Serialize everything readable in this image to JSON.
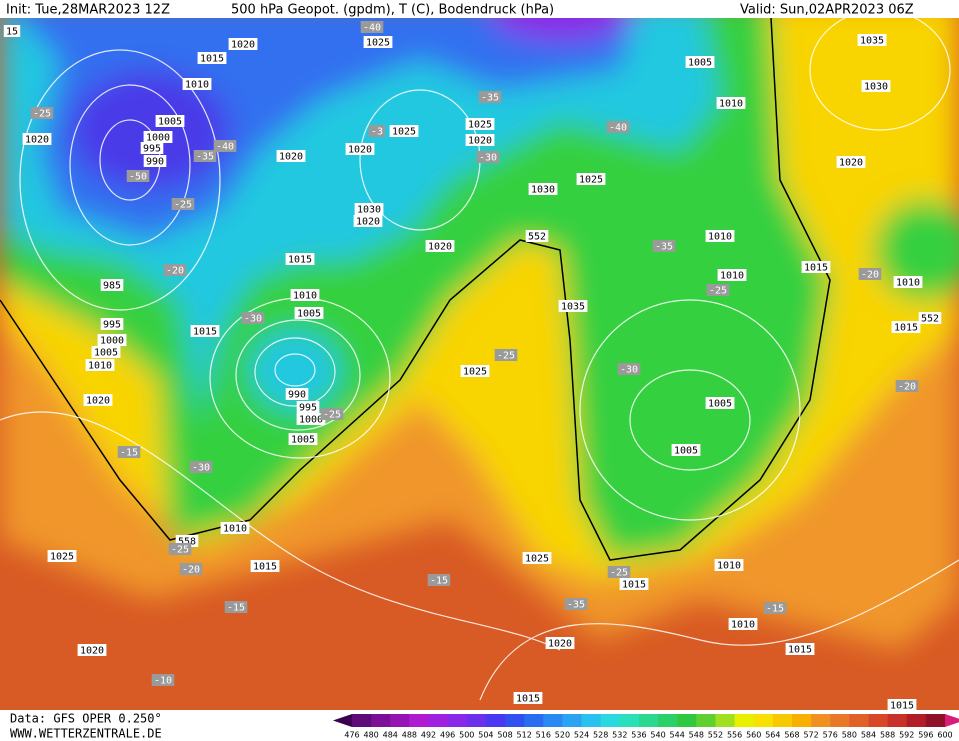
{
  "header": {
    "init": "Init: Tue,28MAR2023 12Z",
    "title": "500 hPa Geopot. (gpdm), T (C), Bodendruck (hPa)",
    "valid": "Valid: Sun,02APR2023 06Z"
  },
  "map_labels": [
    "15",
    "1020",
    "1025",
    "-40",
    "1015",
    "1010",
    "-25",
    "1020",
    "1005",
    "1000",
    "995",
    "990",
    "-35",
    "-40",
    "-50",
    "-25",
    "1020",
    "1020",
    "-3",
    "1025",
    "-35",
    "1025",
    "1020",
    "-30",
    "1005",
    "1010",
    "-40",
    "1035",
    "1030",
    "1020",
    "1030",
    "1025",
    "1030",
    "1020",
    "1020",
    "552",
    "1010",
    "-35",
    "-20",
    "985",
    "1015",
    "1010",
    "1005",
    "-30",
    "1015",
    "995",
    "1000",
    "1005",
    "1010",
    "1010",
    "-25",
    "1015",
    "-20",
    "1010",
    "1015",
    "552",
    "1035",
    "-25",
    "1025",
    "-30",
    "-20",
    "990",
    "995",
    "1000",
    "-25",
    "1005",
    "1005",
    "1020",
    "-15",
    "-30",
    "1005",
    "1010",
    "558",
    "-25",
    "-20",
    "1025",
    "1015",
    "1025",
    "-15",
    "-25",
    "1015",
    "1010",
    "-35",
    "-15",
    "-15",
    "1010",
    "1020",
    "1015",
    "1020",
    "-10",
    "1015",
    "1015"
  ],
  "colorbar": {
    "colors": [
      "#3c0050",
      "#5e0a78",
      "#7a1096",
      "#9614b4",
      "#b01ad0",
      "#a020e0",
      "#8a28e8",
      "#6a30ec",
      "#4a38f0",
      "#3050f0",
      "#2a6cf0",
      "#2a88f2",
      "#2aa4f2",
      "#2ac0f0",
      "#2ad8e0",
      "#2ae0b8",
      "#2ad890",
      "#2ad068",
      "#30c840",
      "#60d030",
      "#a0e020",
      "#e8f000",
      "#f8e000",
      "#f8c800",
      "#f8b000",
      "#f09020",
      "#e87828",
      "#e06028",
      "#d84828",
      "#c83028",
      "#b01c28",
      "#901028",
      "#d81e78"
    ],
    "labels": [
      476,
      480,
      484,
      488,
      492,
      496,
      500,
      504,
      508,
      512,
      516,
      520,
      524,
      528,
      532,
      536,
      540,
      544,
      548,
      552,
      556,
      560,
      564,
      568,
      572,
      576,
      580,
      584,
      588,
      592,
      596,
      600
    ]
  },
  "footer": {
    "data": "Data: GFS OPER 0.250°",
    "website": "WWW.WETTERZENTRALE.DE"
  }
}
